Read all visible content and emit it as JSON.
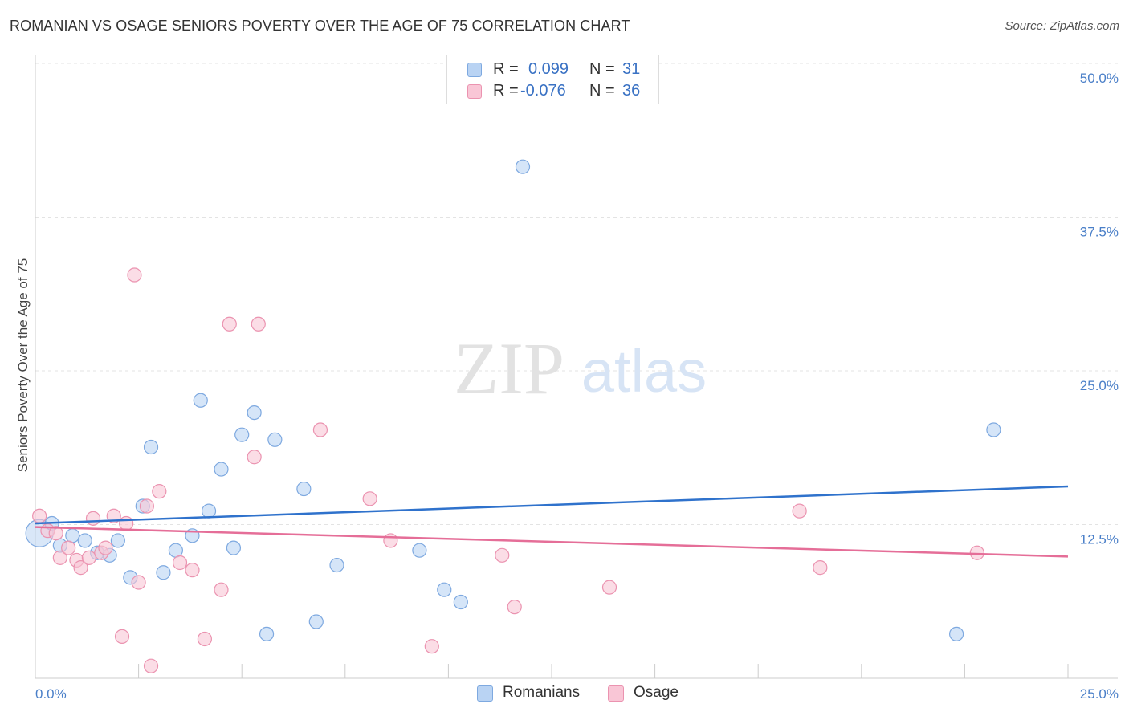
{
  "title": "ROMANIAN VS OSAGE SENIORS POVERTY OVER THE AGE OF 75 CORRELATION CHART",
  "source": "Source: ZipAtlas.com",
  "watermark": {
    "zip": "ZIP",
    "atlas": "atlas"
  },
  "legend": {
    "r_label": "R =",
    "n_label": "N =",
    "series": [
      {
        "name": "Romanians",
        "r": "0.099",
        "n": "31"
      },
      {
        "name": "Osage",
        "r": "-0.076",
        "n": "36"
      }
    ]
  },
  "colors": {
    "romanians_fill": "#b9d3f3",
    "romanians_stroke": "#7ea9e0",
    "romanians_line": "#2f72cc",
    "osage_fill": "#f9c6d6",
    "osage_stroke": "#eb93b0",
    "osage_line": "#e56e98"
  },
  "chart_data": {
    "type": "scatter",
    "title": "ROMANIAN VS OSAGE SENIORS POVERTY OVER THE AGE OF 75 CORRELATION CHART",
    "xlabel": "",
    "ylabel": "Seniors Poverty Over the Age of 75",
    "xlim": [
      0,
      25
    ],
    "ylim": [
      0,
      50
    ],
    "x_tick_labels": [
      "0.0%",
      "25.0%"
    ],
    "y_ticks": [
      12.5,
      25.0,
      37.5,
      50.0
    ],
    "y_tick_labels": [
      "12.5%",
      "25.0%",
      "37.5%",
      "50.0%"
    ],
    "grid": true,
    "series": [
      {
        "name": "Romanians",
        "trend": {
          "x": [
            0,
            25
          ],
          "y": [
            12.6,
            15.6
          ]
        },
        "points": [
          {
            "x": 0.1,
            "y": 11.8,
            "big": true
          },
          {
            "x": 0.4,
            "y": 12.6
          },
          {
            "x": 0.6,
            "y": 10.8
          },
          {
            "x": 0.9,
            "y": 11.6
          },
          {
            "x": 1.2,
            "y": 11.2
          },
          {
            "x": 1.5,
            "y": 10.2
          },
          {
            "x": 1.8,
            "y": 10.0
          },
          {
            "x": 2.0,
            "y": 11.2
          },
          {
            "x": 2.3,
            "y": 8.2
          },
          {
            "x": 2.6,
            "y": 14.0
          },
          {
            "x": 2.8,
            "y": 18.8
          },
          {
            "x": 3.1,
            "y": 8.6
          },
          {
            "x": 3.4,
            "y": 10.4
          },
          {
            "x": 3.8,
            "y": 11.6
          },
          {
            "x": 4.0,
            "y": 22.6
          },
          {
            "x": 4.2,
            "y": 13.6
          },
          {
            "x": 4.5,
            "y": 17.0
          },
          {
            "x": 4.8,
            "y": 10.6
          },
          {
            "x": 5.0,
            "y": 19.8
          },
          {
            "x": 5.3,
            "y": 21.6
          },
          {
            "x": 5.6,
            "y": 3.6
          },
          {
            "x": 5.8,
            "y": 19.4
          },
          {
            "x": 6.5,
            "y": 15.4
          },
          {
            "x": 6.8,
            "y": 4.6
          },
          {
            "x": 7.3,
            "y": 9.2
          },
          {
            "x": 9.3,
            "y": 10.4
          },
          {
            "x": 9.9,
            "y": 7.2
          },
          {
            "x": 10.3,
            "y": 6.2
          },
          {
            "x": 11.8,
            "y": 41.6
          },
          {
            "x": 22.3,
            "y": 3.6
          },
          {
            "x": 23.2,
            "y": 20.2
          }
        ]
      },
      {
        "name": "Osage",
        "trend": {
          "x": [
            0,
            25
          ],
          "y": [
            12.3,
            9.9
          ]
        },
        "points": [
          {
            "x": 0.1,
            "y": 13.2
          },
          {
            "x": 0.3,
            "y": 12.0
          },
          {
            "x": 0.5,
            "y": 11.8
          },
          {
            "x": 0.6,
            "y": 9.8
          },
          {
            "x": 0.8,
            "y": 10.6
          },
          {
            "x": 1.0,
            "y": 9.6
          },
          {
            "x": 1.1,
            "y": 9.0
          },
          {
            "x": 1.3,
            "y": 9.8
          },
          {
            "x": 1.4,
            "y": 13.0
          },
          {
            "x": 1.6,
            "y": 10.2
          },
          {
            "x": 1.7,
            "y": 10.6
          },
          {
            "x": 1.9,
            "y": 13.2
          },
          {
            "x": 2.1,
            "y": 3.4
          },
          {
            "x": 2.2,
            "y": 12.6
          },
          {
            "x": 2.4,
            "y": 32.8
          },
          {
            "x": 2.5,
            "y": 7.8
          },
          {
            "x": 2.7,
            "y": 14.0
          },
          {
            "x": 2.8,
            "y": 1.0
          },
          {
            "x": 3.0,
            "y": 15.2
          },
          {
            "x": 3.5,
            "y": 9.4
          },
          {
            "x": 3.8,
            "y": 8.8
          },
          {
            "x": 4.1,
            "y": 3.2
          },
          {
            "x": 4.5,
            "y": 7.2
          },
          {
            "x": 4.7,
            "y": 28.8
          },
          {
            "x": 5.3,
            "y": 18.0
          },
          {
            "x": 5.4,
            "y": 28.8
          },
          {
            "x": 6.9,
            "y": 20.2
          },
          {
            "x": 8.1,
            "y": 14.6
          },
          {
            "x": 8.6,
            "y": 11.2
          },
          {
            "x": 9.6,
            "y": 2.6
          },
          {
            "x": 11.3,
            "y": 10.0
          },
          {
            "x": 11.6,
            "y": 5.8
          },
          {
            "x": 13.9,
            "y": 7.4
          },
          {
            "x": 18.5,
            "y": 13.6
          },
          {
            "x": 19.0,
            "y": 9.0
          },
          {
            "x": 22.8,
            "y": 10.2
          }
        ]
      }
    ]
  }
}
